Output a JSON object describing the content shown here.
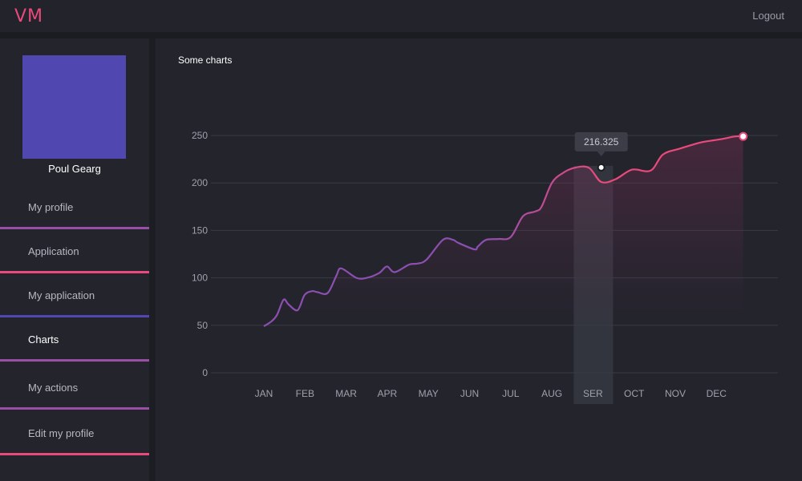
{
  "header": {
    "logo": "VM",
    "logout_label": "Logout"
  },
  "profile": {
    "name": "Poul Gearg",
    "avatar_color": "#5048b0"
  },
  "sidebar": {
    "items": [
      {
        "label": "My profile",
        "color": "#9a4fa6",
        "active": false
      },
      {
        "label": "Application",
        "color": "#e94a7b",
        "active": false
      },
      {
        "label": "My application",
        "color": "#5048b0",
        "active": false
      },
      {
        "label": "Charts",
        "color": "#9a4fa6",
        "active": true
      },
      {
        "label": "My actions",
        "color": "#9a4fa6",
        "active": false
      },
      {
        "label": "Edit my profile",
        "color": "#e94a7b",
        "active": false
      }
    ]
  },
  "main": {
    "title": "Some charts"
  },
  "chart_data": {
    "type": "area",
    "title": "",
    "categories": [
      "JAN",
      "FEB",
      "MAR",
      "APR",
      "MAY",
      "JUN",
      "JUL",
      "AUG",
      "SER",
      "OCT",
      "NOV",
      "DEC"
    ],
    "series": [
      {
        "x": [
          0.0,
          0.18,
          0.32,
          0.48,
          0.6,
          0.82,
          0.99,
          1.17,
          1.3,
          1.55,
          1.76,
          1.88,
          2.25,
          2.5,
          2.8,
          2.99,
          3.18,
          3.53,
          3.73,
          3.95,
          4.35,
          4.6,
          4.72,
          5.12,
          5.2,
          5.4,
          5.7,
          6.0,
          6.3,
          6.6,
          6.75,
          7.0,
          7.25,
          7.55,
          7.9,
          8.2,
          8.55,
          8.95,
          9.4,
          9.7,
          10.1,
          10.4,
          10.65,
          11.1,
          11.45,
          11.65
        ],
        "values": [
          49,
          54,
          61,
          77,
          72,
          66,
          82,
          86,
          85,
          84,
          102,
          110,
          100,
          100,
          105,
          112,
          106,
          114,
          115,
          119,
          140,
          140,
          137,
          130,
          133,
          140,
          141,
          143,
          165,
          170,
          175,
          200,
          210,
          216,
          216,
          201,
          204,
          214,
          213,
          230,
          236,
          240,
          243,
          246,
          249,
          249
        ]
      }
    ],
    "ylim": [
      0,
      250
    ],
    "yticks": [
      "0",
      "50",
      "100",
      "150",
      "200",
      "250"
    ],
    "highlight": {
      "category": "SER",
      "value": 216.325,
      "label": "216.325"
    },
    "line_colors": [
      "#8b4fb0",
      "#e94a7b"
    ],
    "grid": true
  }
}
